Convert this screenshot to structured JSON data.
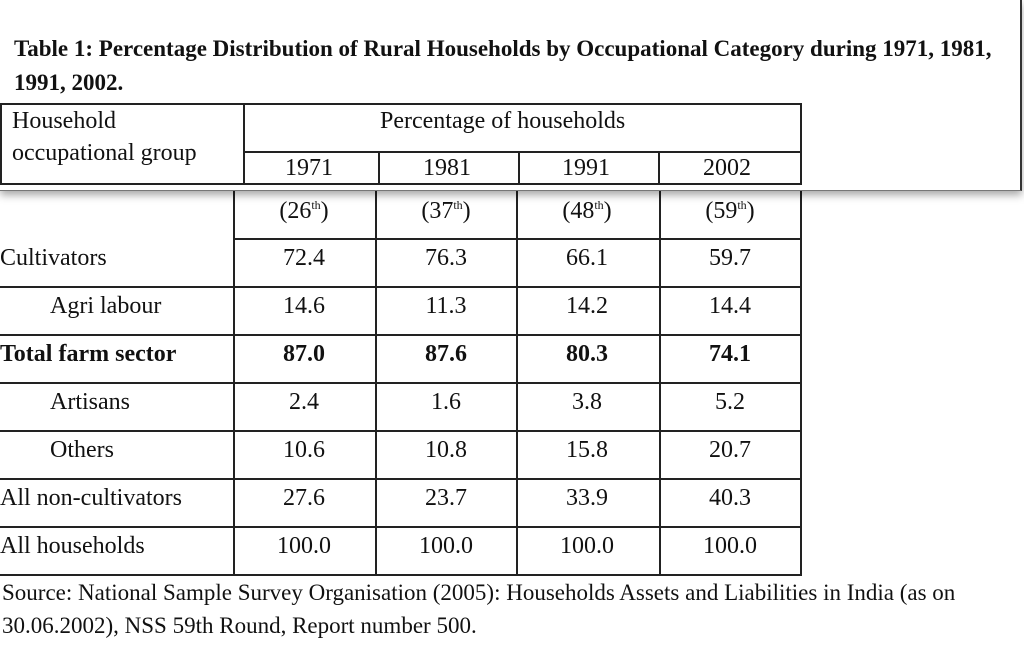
{
  "title": "Table 1: Percentage Distribution of Rural Households by Occupational Category during 1971, 1981, 1991, 2002.",
  "header": {
    "group_label_line1": "Household",
    "group_label_line2": "occupational group",
    "percentage_label": "Percentage of households",
    "years": [
      "1971",
      "1981",
      "1991",
      "2002"
    ],
    "rounds": [
      "26",
      "37",
      "48",
      "59"
    ],
    "round_suffix": "th"
  },
  "rows": [
    {
      "label": "Cultivators",
      "values": [
        "72.4",
        "76.3",
        "66.1",
        "59.7"
      ],
      "bold": false,
      "indent": false
    },
    {
      "label": "Agri labour",
      "values": [
        "14.6",
        "11.3",
        "14.2",
        "14.4"
      ],
      "bold": false,
      "indent": true
    },
    {
      "label": "Total farm sector",
      "values": [
        "87.0",
        "87.6",
        "80.3",
        "74.1"
      ],
      "bold": true,
      "indent": false
    },
    {
      "label": "Artisans",
      "values": [
        "2.4",
        "1.6",
        "3.8",
        "5.2"
      ],
      "bold": false,
      "indent": true
    },
    {
      "label": "Others",
      "values": [
        "10.6",
        "10.8",
        "15.8",
        "20.7"
      ],
      "bold": false,
      "indent": true
    },
    {
      "label": "All non-cultivators",
      "values": [
        "27.6",
        "23.7",
        "33.9",
        "40.3"
      ],
      "bold": false,
      "indent": false
    },
    {
      "label": "All households",
      "values": [
        "100.0",
        "100.0",
        "100.0",
        "100.0"
      ],
      "bold": false,
      "indent": false
    }
  ],
  "source": "Source: National Sample Survey Organisation (2005): Households Assets and Liabilities in India (as on 30.06.2002), NSS 59th Round, Report number 500."
}
